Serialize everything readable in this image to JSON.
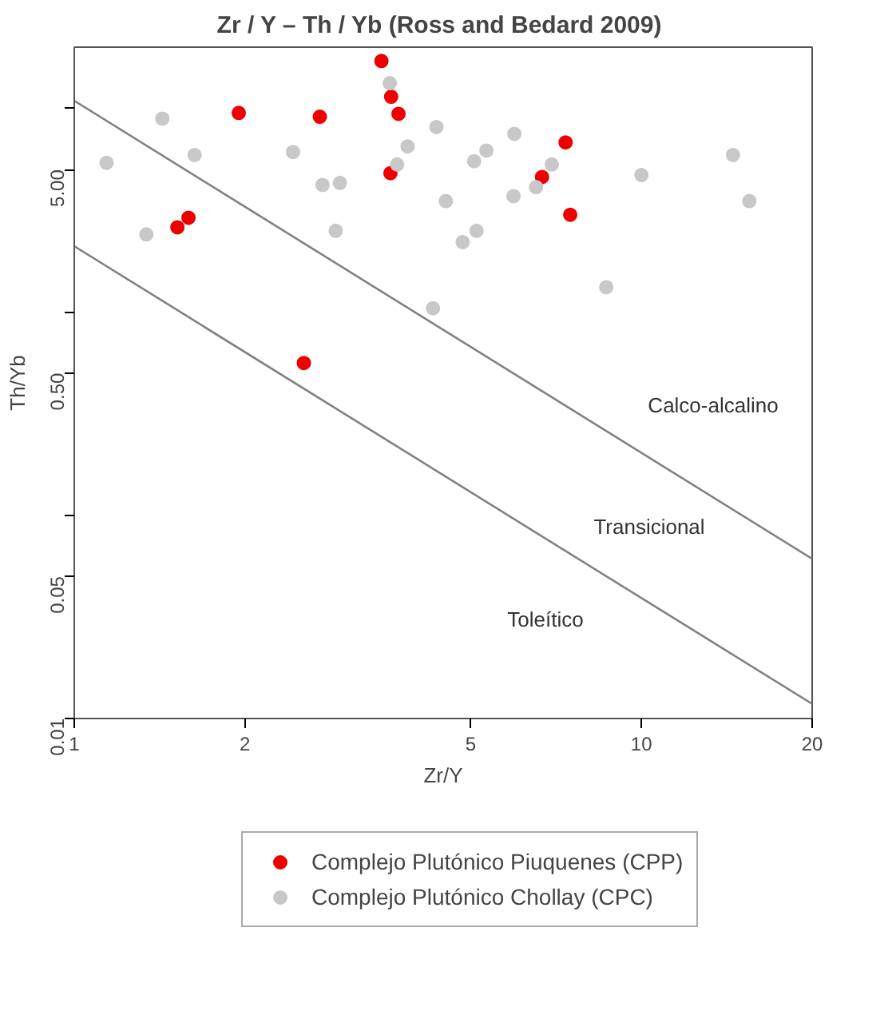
{
  "chart_data": {
    "type": "scatter",
    "title": "Zr / Y – Th / Yb  (Ross and Bedard 2009)",
    "xlabel": "Zr/Y",
    "ylabel": "Th/Yb",
    "log": "xy",
    "xlim": [
      1,
      20
    ],
    "ylim": [
      0.01,
      20
    ],
    "xticks": [
      1,
      2,
      5,
      10,
      20
    ],
    "yticks": [
      {
        "value": 0.01,
        "label": "0.01"
      },
      {
        "value": 0.05,
        "label": "0.05"
      },
      {
        "value": 0.1,
        "label": null
      },
      {
        "value": 0.5,
        "label": "0.50"
      },
      {
        "value": 1,
        "label": null
      },
      {
        "value": 5,
        "label": "5.00"
      },
      {
        "value": 10,
        "label": null
      }
    ],
    "grid": false,
    "legend": "bottom",
    "marker": "circle",
    "series": [
      {
        "name": "Complejo Plutónico Piuquenes (CPP)",
        "color": "#ee0000",
        "x": [
          3.48,
          3.62,
          3.73,
          1.95,
          2.71,
          3.61,
          7.35,
          6.68,
          7.49,
          1.59,
          1.52,
          2.54
        ],
        "values": [
          17.1,
          11.4,
          9.4,
          9.5,
          9.1,
          4.8,
          6.8,
          4.6,
          3.0,
          2.9,
          2.6,
          0.56
        ]
      },
      {
        "name": "Complejo Plutónico Chollay (CPC)",
        "color": "#c8c8c8",
        "x": [
          3.6,
          1.43,
          1.14,
          1.63,
          1.34,
          2.43,
          2.74,
          2.94,
          2.89,
          3.71,
          3.87,
          4.35,
          4.52,
          4.84,
          5.12,
          5.07,
          5.33,
          4.29,
          5.97,
          5.95,
          6.52,
          6.95,
          8.67,
          10.0,
          14.5,
          15.5
        ],
        "values": [
          13.3,
          8.9,
          5.4,
          5.9,
          2.4,
          6.1,
          4.2,
          4.3,
          2.5,
          5.3,
          6.5,
          8.1,
          3.5,
          2.2,
          2.5,
          5.5,
          6.2,
          1.04,
          7.5,
          3.7,
          4.1,
          5.3,
          1.32,
          4.7,
          5.9,
          3.5
        ]
      },
      {
        "type": "line",
        "marker": "none",
        "color": "#808080",
        "x": [
          1,
          20
        ],
        "values": [
          10.9,
          0.061
        ]
      },
      {
        "type": "line",
        "marker": "none",
        "color": "#808080",
        "x": [
          1,
          20
        ],
        "values": [
          2.1,
          0.0118
        ]
      }
    ],
    "annotations": [
      "Calco-alcalino",
      "Transicional",
      "Toleítico"
    ]
  }
}
